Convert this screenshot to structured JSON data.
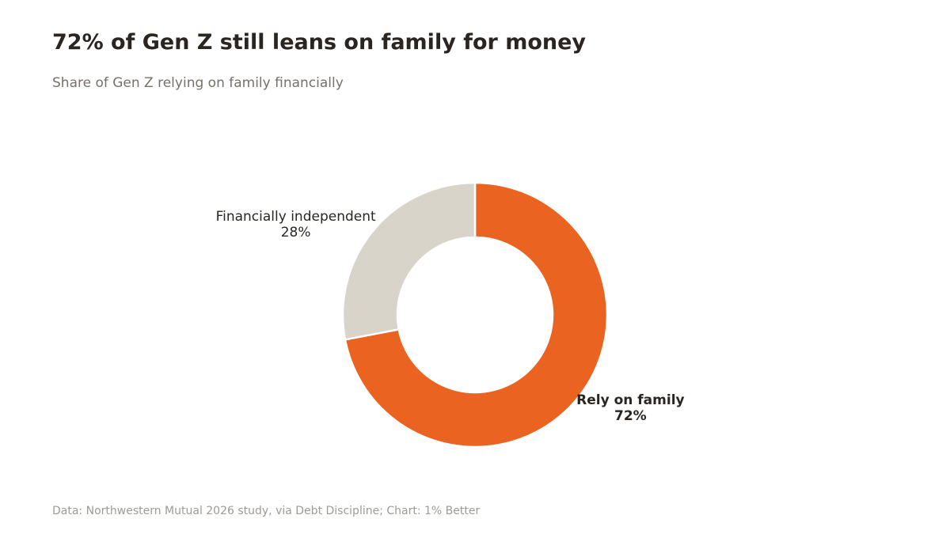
{
  "title": "72% of Gen Z still leans on family for money",
  "subtitle": "Share of Gen Z relying on family financially",
  "source": "Data: Northwestern Mutual 2026 study, via Debt Discipline; Chart: 1% Better",
  "chart_data": {
    "type": "pie",
    "donut": true,
    "slices": [
      {
        "label": "Rely on family",
        "value": 72,
        "value_label": "72%",
        "color": "#EA6320",
        "emphasis": true
      },
      {
        "label": "Financially independent",
        "value": 28,
        "value_label": "28%",
        "color": "#D9D4CA",
        "emphasis": false
      }
    ],
    "start_angle": "12 o'clock, clockwise",
    "legend": "none (direct labels)"
  }
}
